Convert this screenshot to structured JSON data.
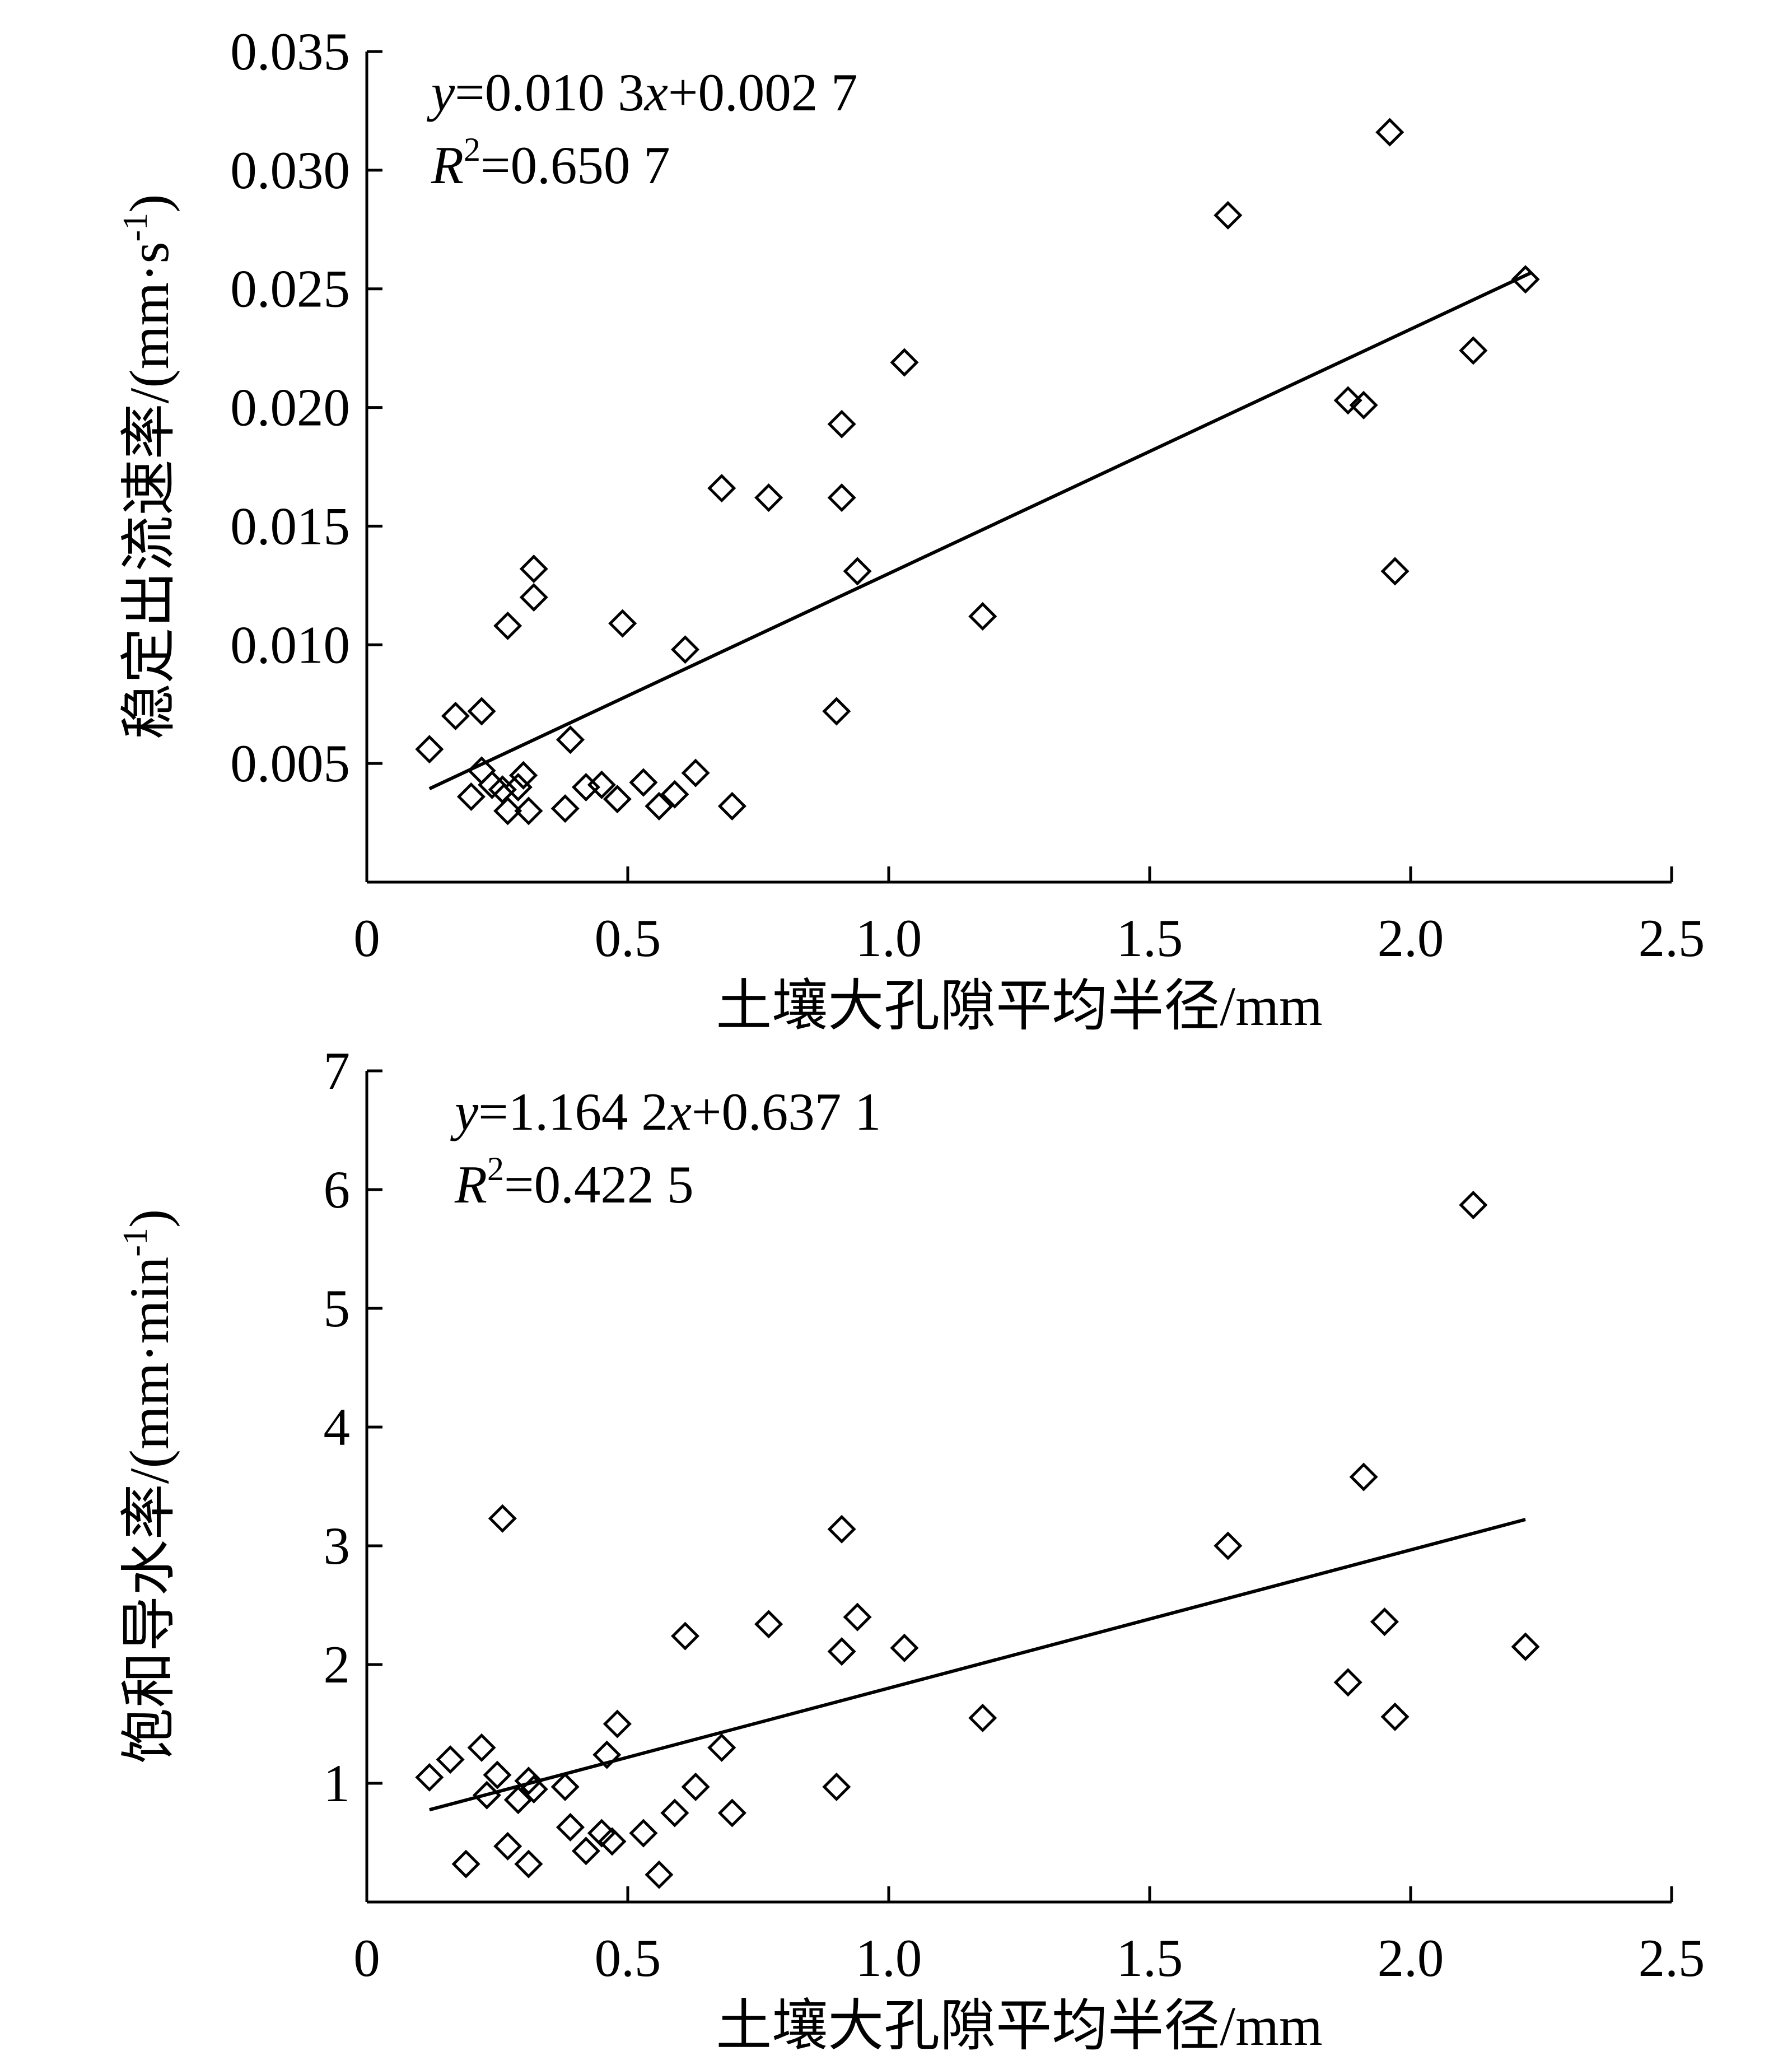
{
  "chart_data": [
    {
      "type": "scatter",
      "title": "",
      "xlabel": "土壤大孔隙平均半径/mm",
      "ylabel": "稳定出流速率/(mm·s",
      "ylabel_sup": "-1",
      "ylabel_close": ")",
      "xlim": [
        0,
        2.5
      ],
      "ylim": [
        0,
        0.035
      ],
      "xticks": [
        0,
        0.5,
        1.0,
        1.5,
        2.0,
        2.5
      ],
      "xtick_labels": [
        "0",
        "0.5",
        "1.0",
        "1.5",
        "2.0",
        "2.5"
      ],
      "yticks": [
        0.005,
        0.01,
        0.015,
        0.02,
        0.025,
        0.03,
        0.035
      ],
      "ytick_labels": [
        "0.005",
        "0.010",
        "0.015",
        "0.020",
        "0.025",
        "0.030",
        "0.035"
      ],
      "equation": {
        "y_var": "y",
        "mid": "=0.010 3",
        "x_var": "x",
        "tail": "+0.002 7",
        "r_var": "R",
        "r_sup": "2",
        "r_tail": "=0.650 7"
      },
      "fit": {
        "slope": 0.0103,
        "intercept": 0.0027,
        "x_range": [
          0.12,
          2.23
        ]
      },
      "points": [
        [
          0.12,
          0.0056
        ],
        [
          0.17,
          0.007
        ],
        [
          0.2,
          0.0036
        ],
        [
          0.22,
          0.0047
        ],
        [
          0.22,
          0.0072
        ],
        [
          0.24,
          0.0041
        ],
        [
          0.26,
          0.0039
        ],
        [
          0.27,
          0.003
        ],
        [
          0.27,
          0.0108
        ],
        [
          0.29,
          0.004
        ],
        [
          0.3,
          0.0045
        ],
        [
          0.31,
          0.003
        ],
        [
          0.32,
          0.012
        ],
        [
          0.32,
          0.0132
        ],
        [
          0.38,
          0.0031
        ],
        [
          0.39,
          0.006
        ],
        [
          0.42,
          0.004
        ],
        [
          0.45,
          0.0041
        ],
        [
          0.48,
          0.0035
        ],
        [
          0.49,
          0.0109
        ],
        [
          0.53,
          0.0042
        ],
        [
          0.56,
          0.0032
        ],
        [
          0.59,
          0.0037
        ],
        [
          0.61,
          0.0098
        ],
        [
          0.63,
          0.0046
        ],
        [
          0.68,
          0.0166
        ],
        [
          0.7,
          0.0032
        ],
        [
          0.77,
          0.0162
        ],
        [
          0.9,
          0.0072
        ],
        [
          0.91,
          0.0193
        ],
        [
          0.91,
          0.0162
        ],
        [
          0.94,
          0.0131
        ],
        [
          1.03,
          0.0219
        ],
        [
          1.18,
          0.0112
        ],
        [
          1.65,
          0.0281
        ],
        [
          1.88,
          0.0203
        ],
        [
          1.91,
          0.0201
        ],
        [
          1.96,
          0.0316
        ],
        [
          1.97,
          0.0131
        ],
        [
          2.12,
          0.0224
        ],
        [
          2.22,
          0.0254
        ]
      ]
    },
    {
      "type": "scatter",
      "title": "",
      "xlabel": "土壤大孔隙平均半径/mm",
      "ylabel": "饱和导水率/(mm·min",
      "ylabel_sup": "-1",
      "ylabel_close": ")",
      "xlim": [
        0,
        2.5
      ],
      "ylim": [
        0,
        7
      ],
      "xticks": [
        0,
        0.5,
        1.0,
        1.5,
        2.0,
        2.5
      ],
      "xtick_labels": [
        "0",
        "0.5",
        "1.0",
        "1.5",
        "2.0",
        "2.5"
      ],
      "yticks": [
        1,
        2,
        3,
        4,
        5,
        6,
        7
      ],
      "ytick_labels": [
        "1",
        "2",
        "3",
        "4",
        "5",
        "6",
        "7"
      ],
      "equation": {
        "y_var": "y",
        "mid": "=1.164 2",
        "x_var": "x",
        "tail": "+0.637 1",
        "r_var": "R",
        "r_sup": "2",
        "r_tail": "=0.422 5"
      },
      "fit": {
        "slope": 1.1642,
        "intercept": 0.6371,
        "x_range": [
          0.12,
          2.22
        ]
      },
      "points": [
        [
          0.12,
          1.05
        ],
        [
          0.16,
          1.2
        ],
        [
          0.19,
          0.32
        ],
        [
          0.22,
          1.3
        ],
        [
          0.23,
          0.9
        ],
        [
          0.25,
          1.07
        ],
        [
          0.26,
          3.23
        ],
        [
          0.27,
          0.47
        ],
        [
          0.29,
          0.86
        ],
        [
          0.31,
          0.32
        ],
        [
          0.31,
          1.02
        ],
        [
          0.32,
          0.95
        ],
        [
          0.38,
          0.97
        ],
        [
          0.39,
          0.63
        ],
        [
          0.42,
          0.43
        ],
        [
          0.45,
          0.58
        ],
        [
          0.46,
          1.24
        ],
        [
          0.47,
          0.51
        ],
        [
          0.48,
          1.5
        ],
        [
          0.53,
          0.58
        ],
        [
          0.56,
          0.23
        ],
        [
          0.59,
          0.75
        ],
        [
          0.61,
          2.24
        ],
        [
          0.63,
          0.97
        ],
        [
          0.68,
          1.3
        ],
        [
          0.7,
          0.75
        ],
        [
          0.77,
          2.34
        ],
        [
          0.9,
          0.97
        ],
        [
          0.91,
          2.11
        ],
        [
          0.91,
          3.14
        ],
        [
          0.94,
          2.4
        ],
        [
          1.03,
          2.14
        ],
        [
          1.18,
          1.55
        ],
        [
          1.65,
          3.0
        ],
        [
          1.88,
          1.85
        ],
        [
          1.91,
          3.58
        ],
        [
          1.95,
          2.36
        ],
        [
          1.97,
          1.56
        ],
        [
          2.12,
          5.87
        ],
        [
          2.22,
          2.15
        ]
      ]
    }
  ]
}
